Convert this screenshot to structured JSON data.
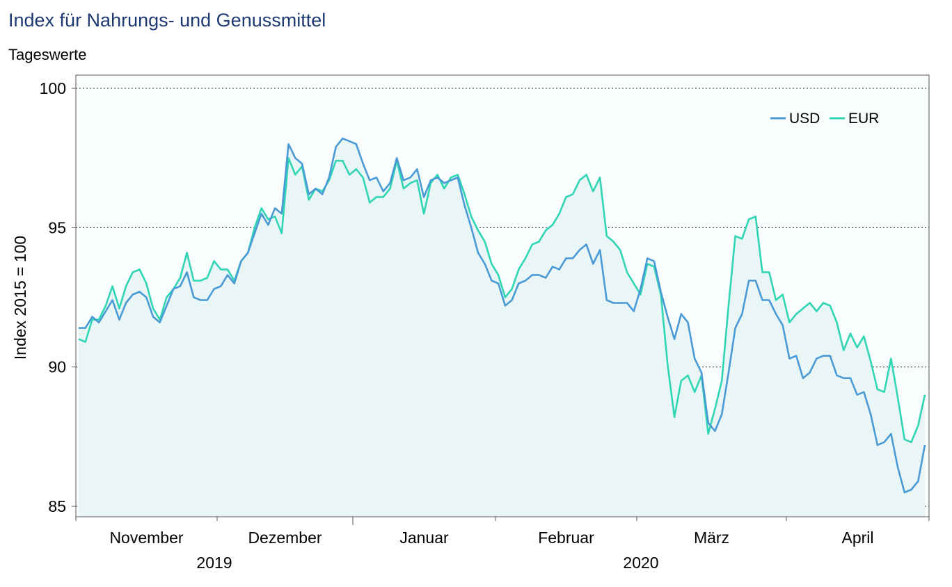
{
  "title": "Index für Nahrungs- und Genussmittel",
  "subtitle": "Tageswerte",
  "colors": {
    "usd": "#4a9ad6",
    "eur": "#30d6b4",
    "fill": "#eaf6f6",
    "title": "#1f3a73"
  },
  "chart_data": {
    "type": "line",
    "ylabel": "Index 2015 = 100",
    "ylim": [
      85,
      100
    ],
    "yticks": [
      85,
      90,
      95,
      100
    ],
    "grid": "horizontal dotted",
    "legend_position": "top-right",
    "month_labels": [
      "November",
      "Dezember",
      "Januar",
      "Februar",
      "März",
      "April"
    ],
    "year_labels": [
      "2019",
      "2020"
    ],
    "series": [
      {
        "name": "USD",
        "values": [
          91.4,
          91.4,
          91.8,
          91.6,
          92.0,
          92.4,
          91.7,
          92.3,
          92.6,
          92.7,
          92.5,
          91.8,
          91.6,
          92.2,
          92.8,
          92.9,
          93.4,
          92.5,
          92.4,
          92.4,
          92.8,
          92.9,
          93.3,
          93.0,
          93.8,
          94.1,
          94.8,
          95.5,
          95.1,
          95.7,
          95.5,
          98.0,
          97.5,
          97.3,
          96.2,
          96.4,
          96.2,
          96.8,
          97.9,
          98.2,
          98.1,
          98.0,
          97.3,
          96.7,
          96.8,
          96.3,
          96.6,
          97.5,
          96.7,
          96.8,
          97.1,
          96.1,
          96.7,
          96.8,
          96.6,
          96.7,
          96.8,
          95.8,
          95.0,
          94.1,
          93.7,
          93.1,
          93.0,
          92.2,
          92.4,
          93.0,
          93.1,
          93.3,
          93.3,
          93.2,
          93.6,
          93.5,
          93.9,
          93.9,
          94.2,
          94.4,
          93.7,
          94.2,
          92.4,
          92.3,
          92.3,
          92.3,
          92.0,
          92.8,
          93.9,
          93.8,
          92.7,
          91.8,
          91.0,
          91.9,
          91.6,
          90.3,
          89.8,
          88.0,
          87.7,
          88.3,
          89.8,
          91.4,
          91.9,
          93.1,
          93.1,
          92.4,
          92.4,
          91.9,
          91.5,
          90.3,
          90.4,
          89.6,
          89.8,
          90.3,
          90.4,
          90.4,
          89.7,
          89.6,
          89.6,
          89.0,
          89.1,
          88.3,
          87.2,
          87.3,
          87.6,
          86.4,
          85.5,
          85.6,
          85.9,
          87.2
        ]
      },
      {
        "name": "EUR",
        "values": [
          91.0,
          90.9,
          91.7,
          91.7,
          92.2,
          92.9,
          92.1,
          92.9,
          93.4,
          93.5,
          93.0,
          92.1,
          91.7,
          92.5,
          92.8,
          93.2,
          94.1,
          93.1,
          93.1,
          93.2,
          93.8,
          93.5,
          93.5,
          93.1,
          93.8,
          94.1,
          95.0,
          95.7,
          95.3,
          95.4,
          94.8,
          97.5,
          96.9,
          97.2,
          96.0,
          96.4,
          96.3,
          96.7,
          97.4,
          97.4,
          96.9,
          97.1,
          96.8,
          95.9,
          96.1,
          96.1,
          96.4,
          97.4,
          96.4,
          96.6,
          96.7,
          95.5,
          96.6,
          96.9,
          96.4,
          96.8,
          96.9,
          96.2,
          95.4,
          94.9,
          94.5,
          93.7,
          93.3,
          92.5,
          92.8,
          93.5,
          93.9,
          94.4,
          94.5,
          94.9,
          95.1,
          95.5,
          96.1,
          96.2,
          96.7,
          96.9,
          96.3,
          96.8,
          94.7,
          94.5,
          94.2,
          93.4,
          93.0,
          92.6,
          93.7,
          93.6,
          92.6,
          90.1,
          88.2,
          89.5,
          89.7,
          89.1,
          89.7,
          87.6,
          88.5,
          89.5,
          92.2,
          94.7,
          94.6,
          95.3,
          95.4,
          93.4,
          93.4,
          92.4,
          92.6,
          91.6,
          91.9,
          92.1,
          92.3,
          92.0,
          92.3,
          92.2,
          91.6,
          90.6,
          91.2,
          90.7,
          91.1,
          90.2,
          89.2,
          89.1,
          90.3,
          88.9,
          87.4,
          87.3,
          87.9,
          89.0
        ]
      }
    ]
  }
}
